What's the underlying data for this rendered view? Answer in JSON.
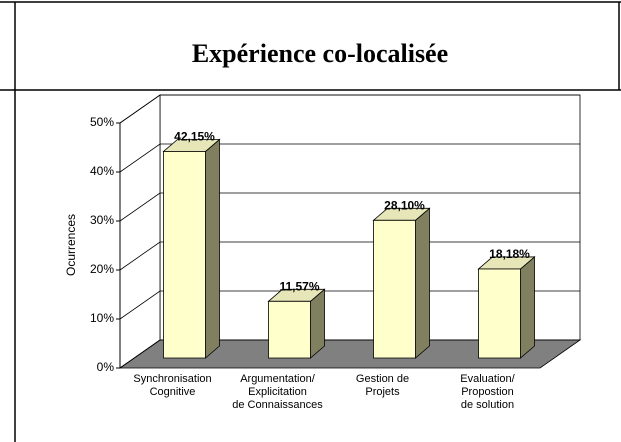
{
  "chart_data": {
    "type": "bar3d",
    "title": "Expérience co-localisée",
    "y_label": "Ocurrences",
    "categories": [
      "Synchronisation\nCognitive",
      "Argumentation/\nExplicitation\nde Connaissances",
      "Gestion de\nProjets",
      "Evaluation/\nPropostion\nde solution"
    ],
    "values": [
      42.15,
      11.57,
      28.1,
      18.18
    ],
    "value_labels": [
      "42,15%",
      "11,57%",
      "28,10%",
      "18,18%"
    ],
    "color": "#ffffcc",
    "ylim": [
      0,
      50
    ],
    "yticks": [
      {
        "value": 0,
        "label": "0%"
      },
      {
        "value": 10,
        "label": "10%"
      },
      {
        "value": 20,
        "label": "20%"
      },
      {
        "value": 30,
        "label": "30%"
      },
      {
        "value": 40,
        "label": "40%"
      },
      {
        "value": 50,
        "label": "50%"
      }
    ],
    "grid": true
  }
}
